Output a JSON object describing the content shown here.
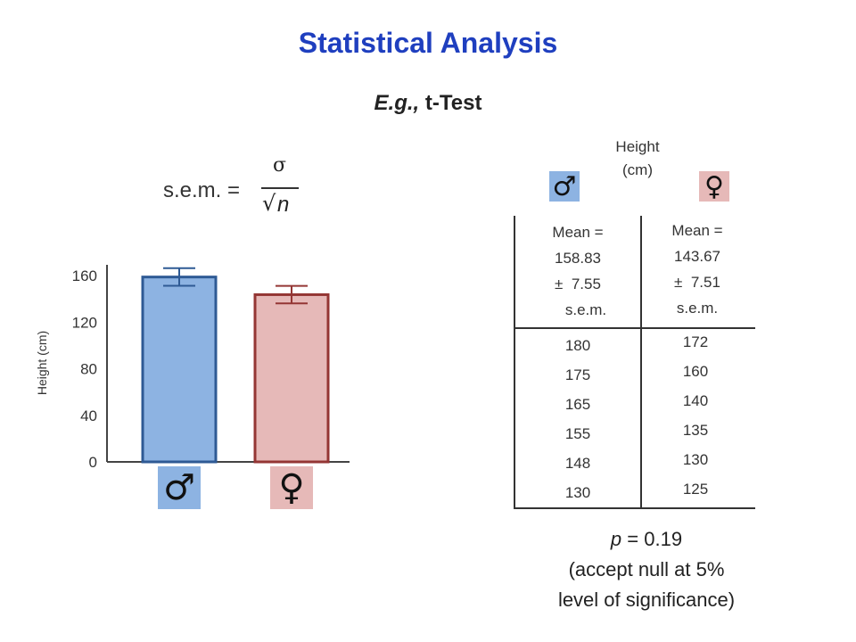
{
  "title": "Statistical Analysis",
  "subtitle": {
    "prefix": "E.g.,",
    "rest": " t-Test"
  },
  "formula": {
    "lhs": "s.e.m. =",
    "numerator": "σ",
    "root_symbol": "√",
    "variable": "n"
  },
  "chart_data": {
    "type": "bar",
    "categories": [
      "♂",
      "♀"
    ],
    "values": [
      158.83,
      143.67
    ],
    "errors": [
      7.55,
      7.51
    ],
    "ylabel": "Height (cm)",
    "yticks": [
      0,
      40,
      80,
      120,
      160
    ],
    "ylim": [
      0,
      167
    ],
    "colors": {
      "fill": [
        "#8db3e2",
        "#e6b9b8"
      ],
      "stroke": [
        "#2e5a94",
        "#943634"
      ]
    },
    "grid": false
  },
  "symbols": {
    "male": "♂",
    "female": "♀",
    "male_bg": "#8db3e2",
    "female_bg": "#e6b9b8"
  },
  "table": {
    "header_line1": "Height",
    "header_line2": "(cm)",
    "male": {
      "mean_label": "Mean =",
      "mean": "158.83",
      "pm": "±",
      "sem_value": "7.55",
      "sem_label": "s.e.m.",
      "values": [
        "180",
        "175",
        "165",
        "155",
        "148",
        "130"
      ]
    },
    "female": {
      "mean_label": "Mean =",
      "mean": "143.67",
      "pm": "±",
      "sem_value": "7.51",
      "sem_label": "s.e.m.",
      "values": [
        "172",
        "160",
        "140",
        "135",
        "130",
        "125"
      ]
    }
  },
  "result": {
    "p_symbol": "p",
    "p_rest": " = 0.19",
    "line2": "(accept null at 5%",
    "line3": "level of significance)"
  }
}
